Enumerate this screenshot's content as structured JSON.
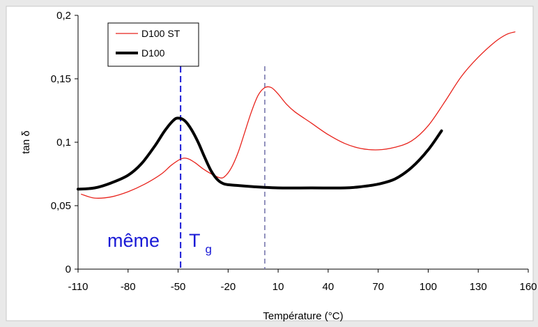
{
  "chart_data": {
    "type": "line",
    "xlabel": "Température (°C)",
    "ylabel": "tan δ",
    "xlim": [
      -110,
      160
    ],
    "ylim": [
      0,
      0.2
    ],
    "x_ticks": [
      -110,
      -80,
      -50,
      -20,
      10,
      40,
      70,
      100,
      130,
      160
    ],
    "x_tick_labels": [
      "-110",
      "-80",
      "-50",
      "-20",
      "10",
      "40",
      "70",
      "100",
      "130",
      "160"
    ],
    "y_ticks": [
      0,
      0.05,
      0.1,
      0.15,
      0.2
    ],
    "y_tick_labels": [
      "0",
      "0,05",
      "0,1",
      "0,15",
      "0,2"
    ],
    "grid": false,
    "legend_position": "top-left",
    "series": [
      {
        "name": "D100 ST",
        "color": "#e8231c",
        "style": "thin",
        "points": [
          [
            -108,
            0.059
          ],
          [
            -100,
            0.056
          ],
          [
            -90,
            0.057
          ],
          [
            -80,
            0.061
          ],
          [
            -70,
            0.067
          ],
          [
            -60,
            0.075
          ],
          [
            -54,
            0.082
          ],
          [
            -48,
            0.087
          ],
          [
            -44,
            0.087
          ],
          [
            -40,
            0.084
          ],
          [
            -35,
            0.079
          ],
          [
            -30,
            0.075
          ],
          [
            -25,
            0.072
          ],
          [
            -22,
            0.073
          ],
          [
            -18,
            0.08
          ],
          [
            -14,
            0.092
          ],
          [
            -10,
            0.108
          ],
          [
            -6,
            0.124
          ],
          [
            -2,
            0.137
          ],
          [
            2,
            0.143
          ],
          [
            6,
            0.143
          ],
          [
            10,
            0.138
          ],
          [
            15,
            0.13
          ],
          [
            20,
            0.124
          ],
          [
            30,
            0.115
          ],
          [
            40,
            0.106
          ],
          [
            50,
            0.099
          ],
          [
            60,
            0.095
          ],
          [
            70,
            0.094
          ],
          [
            80,
            0.096
          ],
          [
            90,
            0.101
          ],
          [
            100,
            0.113
          ],
          [
            110,
            0.132
          ],
          [
            120,
            0.152
          ],
          [
            130,
            0.167
          ],
          [
            140,
            0.179
          ],
          [
            147,
            0.185
          ],
          [
            152,
            0.187
          ]
        ]
      },
      {
        "name": "D100",
        "color": "#000000",
        "style": "thick",
        "points": [
          [
            -110,
            0.063
          ],
          [
            -100,
            0.064
          ],
          [
            -90,
            0.068
          ],
          [
            -80,
            0.074
          ],
          [
            -72,
            0.083
          ],
          [
            -64,
            0.097
          ],
          [
            -58,
            0.109
          ],
          [
            -53,
            0.117
          ],
          [
            -50,
            0.119
          ],
          [
            -46,
            0.117
          ],
          [
            -42,
            0.11
          ],
          [
            -38,
            0.1
          ],
          [
            -34,
            0.088
          ],
          [
            -30,
            0.077
          ],
          [
            -26,
            0.07
          ],
          [
            -22,
            0.067
          ],
          [
            -15,
            0.066
          ],
          [
            -5,
            0.065
          ],
          [
            10,
            0.064
          ],
          [
            30,
            0.064
          ],
          [
            50,
            0.064
          ],
          [
            60,
            0.065
          ],
          [
            70,
            0.067
          ],
          [
            80,
            0.071
          ],
          [
            90,
            0.08
          ],
          [
            100,
            0.094
          ],
          [
            108,
            0.109
          ]
        ]
      }
    ],
    "reference_lines": [
      {
        "x": -48.5,
        "color": "#1a1ad6",
        "style": "dashed"
      },
      {
        "x": 2,
        "color": "#6f6fa8",
        "style": "dashed"
      }
    ],
    "annotation": {
      "text": "même",
      "tg_main": "T",
      "tg_sub": "g",
      "color": "#1a1ad6"
    }
  }
}
